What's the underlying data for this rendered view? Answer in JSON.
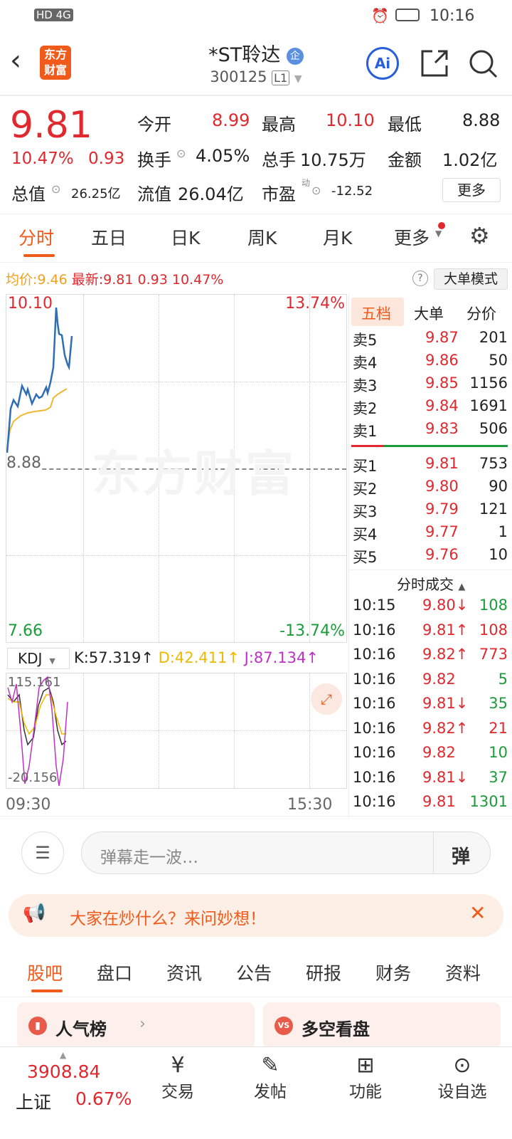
{
  "status_bar": {
    "time": "10:16",
    "left_icons": "HD 4G"
  },
  "header": {
    "logo": "东方财富",
    "title": "*ST聆达",
    "badge": "企",
    "code": "300125",
    "level": "L1",
    "ai": "Ai"
  },
  "quote": {
    "price": "9.81",
    "pct": "10.47%",
    "chg": "0.93",
    "open_label": "今开",
    "open": "8.99",
    "high_label": "最高",
    "high": "10.10",
    "low_label": "最低",
    "low": "8.88",
    "turnover_label": "换手",
    "turnover": "4.05%",
    "volume_label": "总手",
    "volume": "10.75万",
    "amount_label": "金额",
    "amount": "1.02亿",
    "mcap_label": "总值",
    "mcap": "26.25亿",
    "float_label": "流值",
    "float": "26.04亿",
    "pe_label": "市盈",
    "pe_sup": "动",
    "pe": "-12.52",
    "more": "更多"
  },
  "chart_tabs": [
    "分时",
    "五日",
    "日K",
    "周K",
    "月K",
    "更多"
  ],
  "info": {
    "avg_label": "均价:",
    "avg": "9.46",
    "latest_label": "最新:",
    "latest": "9.81",
    "chg": "0.93",
    "pct": "10.47%",
    "mode": "大单模式"
  },
  "chart": {
    "top_price": "10.10",
    "top_pct": "13.74%",
    "mid_price": "8.88",
    "bottom_price": "7.66",
    "bottom_pct": "-13.74%",
    "watermark": "东方财富"
  },
  "kdj": {
    "label": "KDJ",
    "k": "K:57.319↑",
    "d": "D:42.411↑",
    "j": "J:87.134↑",
    "max": "115.161",
    "min": "-20.156",
    "start": "09:30",
    "end": "15:30"
  },
  "orderbook": {
    "tabs": [
      "五档",
      "大单",
      "分价"
    ],
    "asks": [
      {
        "l": "卖5",
        "p": "9.87",
        "v": "201"
      },
      {
        "l": "卖4",
        "p": "9.86",
        "v": "50"
      },
      {
        "l": "卖3",
        "p": "9.85",
        "v": "1156"
      },
      {
        "l": "卖2",
        "p": "9.84",
        "v": "1691"
      },
      {
        "l": "卖1",
        "p": "9.83",
        "v": "506"
      }
    ],
    "bids": [
      {
        "l": "买1",
        "p": "9.81",
        "v": "753"
      },
      {
        "l": "买2",
        "p": "9.80",
        "v": "90"
      },
      {
        "l": "买3",
        "p": "9.79",
        "v": "121"
      },
      {
        "l": "买4",
        "p": "9.77",
        "v": "1"
      },
      {
        "l": "买5",
        "p": "9.76",
        "v": "10"
      }
    ]
  },
  "trades": {
    "title": "分时成交",
    "rows": [
      {
        "t": "10:15",
        "p": "9.80↓",
        "v": "108",
        "c": "green"
      },
      {
        "t": "10:16",
        "p": "9.81↑",
        "v": "108",
        "c": "red"
      },
      {
        "t": "10:16",
        "p": "9.82↑",
        "v": "773",
        "c": "red"
      },
      {
        "t": "10:16",
        "p": "9.82",
        "v": "5",
        "c": "green"
      },
      {
        "t": "10:16",
        "p": "9.81↓",
        "v": "35",
        "c": "green"
      },
      {
        "t": "10:16",
        "p": "9.82↑",
        "v": "21",
        "c": "red"
      },
      {
        "t": "10:16",
        "p": "9.82",
        "v": "10",
        "c": "green"
      },
      {
        "t": "10:16",
        "p": "9.81↓",
        "v": "37",
        "c": "green"
      },
      {
        "t": "10:16",
        "p": "9.81",
        "v": "1301",
        "c": "green"
      }
    ]
  },
  "comment": {
    "placeholder": "弹幕走一波…",
    "danmu": "弹"
  },
  "banner": {
    "text": "大家在炒什么？来问妙想！"
  },
  "section_tabs": [
    "股吧",
    "盘口",
    "资讯",
    "公告",
    "研报",
    "财务",
    "资料"
  ],
  "cards": [
    {
      "label": "人气榜"
    },
    {
      "label": "多空看盘"
    }
  ],
  "bottom": {
    "index_value": "3908.84",
    "index_name": "上证",
    "index_pct": "0.67%",
    "items": [
      "交易",
      "发帖",
      "功能",
      "设自选"
    ]
  },
  "colors": {
    "up": "#e0282e",
    "down": "#1a9c3a",
    "accent": "#f05a1a",
    "price_line": "#2f6db5",
    "avg_line": "#f0b830"
  }
}
